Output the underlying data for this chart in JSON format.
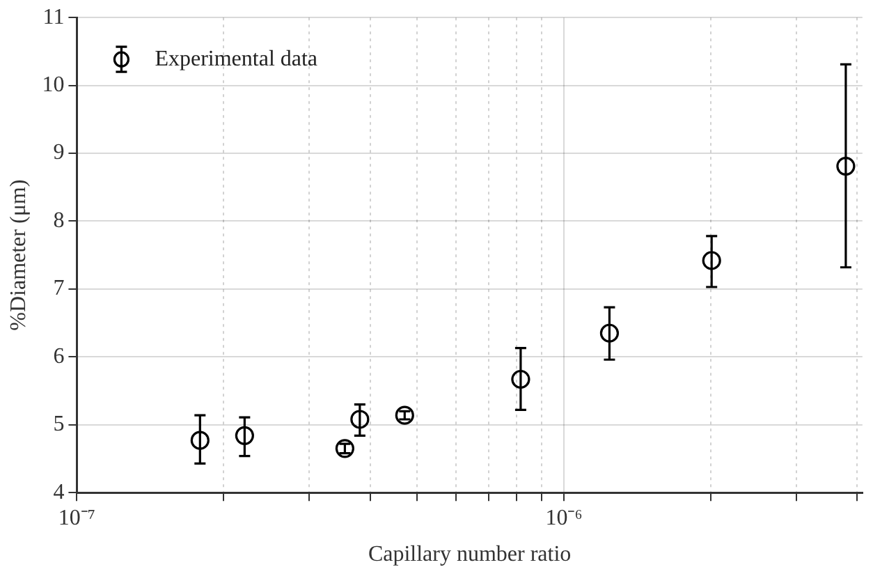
{
  "chart_data": {
    "type": "scatter",
    "xlabel": "Capillary number ratio",
    "ylabel": "%Diameter (μm)",
    "log": "x",
    "grid": true,
    "legend": "top left",
    "marker": "circle",
    "xlim": [
      1e-07,
      4.1e-06
    ],
    "xticks": [
      {
        "value": 1e-07,
        "label": "10⁻⁷"
      },
      {
        "value": 2e-07,
        "label": null
      },
      {
        "value": 3e-07,
        "label": null
      },
      {
        "value": 4e-07,
        "label": null
      },
      {
        "value": 5e-07,
        "label": null
      },
      {
        "value": 6e-07,
        "label": null
      },
      {
        "value": 7e-07,
        "label": null
      },
      {
        "value": 8e-07,
        "label": null
      },
      {
        "value": 9e-07,
        "label": null
      },
      {
        "value": 1e-06,
        "label": "10⁻⁶"
      },
      {
        "value": 2e-06,
        "label": null
      },
      {
        "value": 3e-06,
        "label": null
      },
      {
        "value": 4e-06,
        "label": null
      }
    ],
    "ylim": [
      4,
      11
    ],
    "yticks": [
      4,
      5,
      6,
      7,
      8,
      9,
      10,
      11
    ],
    "series": [
      {
        "name": "Experimental data",
        "color": "#000000",
        "x": [
          1.79e-07,
          2.21e-07,
          3.55e-07,
          3.81e-07,
          4.71e-07,
          8.15e-07,
          1.24e-06,
          2.01e-06,
          3.79e-06
        ],
        "values": [
          4.77,
          4.84,
          4.65,
          5.08,
          5.14,
          5.67,
          6.35,
          7.42,
          8.81
        ],
        "errors": [
          [
            4.43,
            5.14
          ],
          [
            4.54,
            5.11
          ],
          [
            4.58,
            4.72
          ],
          [
            4.84,
            5.3
          ],
          [
            5.08,
            5.2
          ],
          [
            5.22,
            6.13
          ],
          [
            5.96,
            6.73
          ],
          [
            7.03,
            7.78
          ],
          [
            7.32,
            10.31
          ]
        ]
      }
    ]
  }
}
